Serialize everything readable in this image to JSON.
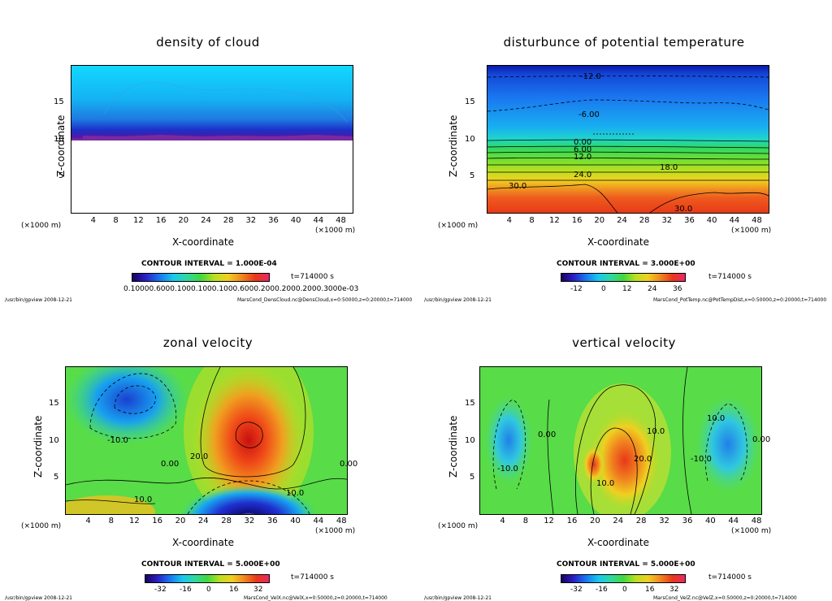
{
  "chart_data": [
    {
      "type": "heatmap",
      "title": "density of cloud",
      "xlabel": "X-coordinate",
      "ylabel": "Z-coordinate",
      "xunit": "(×1000 m)",
      "xlim": [
        0,
        50
      ],
      "ylim": [
        0,
        20
      ],
      "xticks": [
        "4",
        "8",
        "12",
        "16",
        "20",
        "24",
        "28",
        "32",
        "36",
        "40",
        "44",
        "48"
      ],
      "yticks": [
        "15",
        "10",
        "5"
      ],
      "contour_interval": "CONTOUR INTERVAL = 1.000E-04",
      "time": "t=714000 s",
      "colorbar_labels": [
        "0.10000.6000.1000.1000.1000.6000.2000.2000.2000.3000e-03"
      ],
      "footer_left": "/usr/bin/gpview   2008-12-21",
      "footer_right": "MarsCond_DensCloud.nc@DensCloud,x=0:50000,z=0:20000,t=714000",
      "cloud_base_z": 10.3
    },
    {
      "type": "heatmap",
      "title": "disturbunce of potential temperature",
      "xlabel": "X-coordinate",
      "ylabel": "Z-coordinate",
      "xunit": "(×1000 m)",
      "xlim": [
        0,
        50
      ],
      "ylim": [
        0,
        20
      ],
      "xticks": [
        "4",
        "8",
        "12",
        "16",
        "20",
        "24",
        "28",
        "32",
        "36",
        "40",
        "44",
        "48"
      ],
      "yticks": [
        "15",
        "10",
        "5"
      ],
      "contour_interval": "CONTOUR INTERVAL = 3.000E+00",
      "time": "t=714000 s",
      "colorbar_labels": [
        "-12",
        "0",
        "12",
        "24",
        "36"
      ],
      "footer_left": "/usr/bin/gpview   2008-12-21",
      "footer_right": "MarsCond_PotTemp.nc@PotTempDist,x=0:50000,z=0:20000,t=714000",
      "contour_labels": [
        "-12.0",
        "-6.00",
        "0.00",
        "6.00",
        "12.0",
        "18.0",
        "24.0",
        "30.0",
        "30.0"
      ]
    },
    {
      "type": "heatmap",
      "title": "zonal velocity",
      "xlabel": "X-coordinate",
      "ylabel": "Z-coordinate",
      "xunit": "(×1000 m)",
      "xlim": [
        0,
        50
      ],
      "ylim": [
        0,
        20
      ],
      "xticks": [
        "4",
        "8",
        "12",
        "16",
        "20",
        "24",
        "28",
        "32",
        "36",
        "40",
        "44",
        "48"
      ],
      "yticks": [
        "15",
        "10",
        "5"
      ],
      "contour_interval": "CONTOUR INTERVAL = 5.000E+00",
      "time": "t=714000 s",
      "colorbar_labels": [
        "-32",
        "-16",
        "0",
        "16",
        "32"
      ],
      "footer_left": "/usr/bin/gpview   2008-12-21",
      "footer_right": "MarsCond_VelX.nc@VelX,x=0:50000,z=0:20000,t=714000",
      "contour_labels": [
        "-10.0",
        "0.00",
        "20.0",
        "10.0",
        "10.0",
        "0.00"
      ]
    },
    {
      "type": "heatmap",
      "title": "vertical velocity",
      "xlabel": "X-coordinate",
      "ylabel": "Z-coordinate",
      "xunit": "(×1000 m)",
      "xlim": [
        0,
        50
      ],
      "ylim": [
        0,
        20
      ],
      "xticks": [
        "4",
        "8",
        "12",
        "16",
        "20",
        "24",
        "28",
        "32",
        "36",
        "40",
        "44",
        "48"
      ],
      "yticks": [
        "15",
        "10",
        "5"
      ],
      "contour_interval": "CONTOUR INTERVAL = 5.000E+00",
      "time": "t=714000 s",
      "colorbar_labels": [
        "-32",
        "-16",
        "0",
        "16",
        "32"
      ],
      "footer_left": "/usr/bin/gpview   2008-12-21",
      "footer_right": "MarsCond_VelZ.nc@VelZ,x=0:50000,z=0:20000,t=714000",
      "contour_labels": [
        "0.00",
        "10.0",
        "-10.0",
        "10.0",
        "20.0",
        "10.0",
        "-10.0",
        "0.00"
      ]
    }
  ]
}
